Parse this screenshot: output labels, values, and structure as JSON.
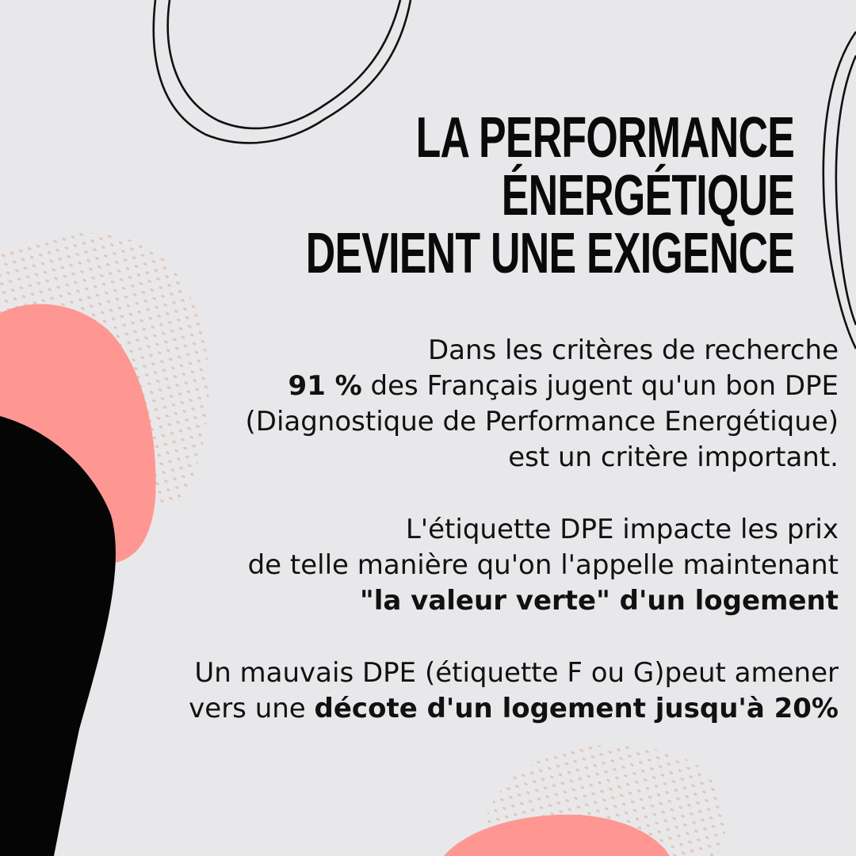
{
  "colors": {
    "background": "#e8e8ea",
    "coral": "#fe9792",
    "black_shape": "#050505",
    "dots": "#e3c6b6",
    "text": "#111111"
  },
  "title": {
    "line1": "LA PERFORMANCE",
    "line2": "ÉNERGÉTIQUE",
    "line3": "DEVIENT UNE EXIGENCE"
  },
  "paragraphs": {
    "p1": {
      "l1": "Dans les critères de recherche",
      "l2_bold": "91 %",
      "l2_rest": " des Français jugent qu'un bon DPE",
      "l3": "(Diagnostique de Performance Energétique)",
      "l4": "est un critère important."
    },
    "p2": {
      "l1": "L'étiquette DPE impacte les prix",
      "l2": "de telle manière qu'on l'appelle maintenant",
      "l3_bold": "\"la valeur verte\" d'un logement"
    },
    "p3": {
      "l1": "Un mauvais DPE (étiquette F ou G)peut amener",
      "l2_plain": "vers une ",
      "l2_bold": "décote d'un logement jusqu'à 20%"
    }
  }
}
